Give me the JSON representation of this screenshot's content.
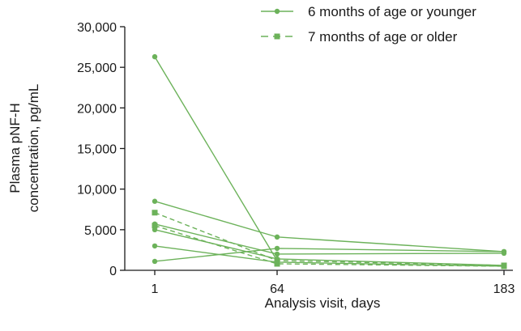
{
  "colors": {
    "series": "#6cb25a",
    "axis": "#1a1a1a",
    "background": "#ffffff"
  },
  "chart_data": {
    "type": "line",
    "title": "",
    "xlabel": "Analysis visit, days",
    "ylabel_lines": [
      "Plasma pNF-H",
      "concentration, pg/mL"
    ],
    "x_ticks": [
      1,
      64,
      183
    ],
    "x_tick_labels": [
      "1",
      "64",
      "183"
    ],
    "ylim": [
      0,
      30000
    ],
    "y_ticks": [
      0,
      5000,
      10000,
      15000,
      20000,
      25000,
      30000
    ],
    "y_tick_labels": [
      "0",
      "5,000",
      "10,000",
      "15,000",
      "20,000",
      "25,000",
      "30,000"
    ],
    "grid": false,
    "legend_position": "top-right",
    "legend": [
      {
        "label": "6 months of age or younger",
        "marker": "circle",
        "line": "solid"
      },
      {
        "label": "7 months of age or older",
        "marker": "square",
        "line": "dashed"
      }
    ],
    "series": [
      {
        "group": 0,
        "x": [
          1,
          64
        ],
        "y": [
          26300,
          1200
        ]
      },
      {
        "group": 0,
        "x": [
          1,
          64,
          183
        ],
        "y": [
          8500,
          4100,
          2300
        ]
      },
      {
        "group": 0,
        "x": [
          1,
          64,
          183
        ],
        "y": [
          5000,
          1400,
          600
        ]
      },
      {
        "group": 0,
        "x": [
          1,
          64,
          183
        ],
        "y": [
          3000,
          1000,
          500
        ]
      },
      {
        "group": 0,
        "x": [
          1,
          64,
          183
        ],
        "y": [
          1100,
          2700,
          2300
        ]
      },
      {
        "group": 0,
        "x": [
          1,
          64,
          183
        ],
        "y": [
          5700,
          2000,
          2100
        ]
      },
      {
        "group": 1,
        "x": [
          1,
          64,
          183
        ],
        "y": [
          7100,
          1200,
          600
        ]
      },
      {
        "group": 1,
        "x": [
          1,
          64,
          183
        ],
        "y": [
          5500,
          800,
          500
        ]
      }
    ]
  }
}
